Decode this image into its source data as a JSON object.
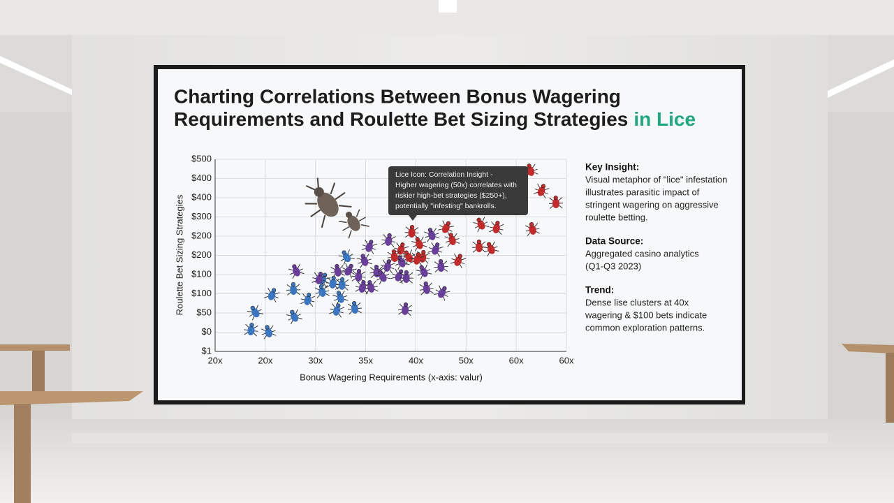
{
  "chart_data": {
    "type": "scatter",
    "title_lines": [
      "Charting Correlations Between Bonus Wagering",
      "Requirements and Roulette Bet Sizing Strategies"
    ],
    "title_highlight": "in Lice",
    "y_label": "Roulette Bet Sizing Strategies",
    "x_label": "Bonus Wagering Requirements (x-axis: valur)",
    "xlim": [
      0,
      7
    ],
    "xticks": [
      {
        "value": 0,
        "label": "20x"
      },
      {
        "value": 1,
        "label": "20x"
      },
      {
        "value": 2,
        "label": "30x"
      },
      {
        "value": 3,
        "label": "35x"
      },
      {
        "value": 4,
        "label": "40x"
      },
      {
        "value": 5,
        "label": "50x"
      },
      {
        "value": 6,
        "label": "60x"
      },
      {
        "value": 7,
        "label": "60x"
      }
    ],
    "ylim": [
      0,
      10
    ],
    "yticks": [
      {
        "value": 10,
        "label": "$500"
      },
      {
        "value": 9,
        "label": "$400"
      },
      {
        "value": 8,
        "label": "$400"
      },
      {
        "value": 7,
        "label": "$300"
      },
      {
        "value": 6,
        "label": "$200"
      },
      {
        "value": 5,
        "label": "$200"
      },
      {
        "value": 4,
        "label": "$100"
      },
      {
        "value": 3,
        "label": "$100"
      },
      {
        "value": 2,
        "label": "$50"
      },
      {
        "value": 1,
        "label": "$0"
      },
      {
        "value": 0,
        "label": "$1"
      }
    ],
    "grid": true,
    "series": [
      {
        "color": "#3a76c2",
        "x": [
          0.79,
          0.72,
          1.06,
          1.14,
          1.56,
          1.57,
          1.85,
          2.13,
          2.15,
          2.53,
          2.49,
          2.43,
          2.78,
          2.61,
          2.35
        ],
        "values": [
          2.07,
          1.16,
          1.05,
          2.98,
          3.27,
          1.85,
          2.73,
          3.16,
          3.78,
          3.53,
          2.84,
          2.18,
          2.29,
          4.95,
          3.6
        ]
      },
      {
        "color": "#6a3f9c",
        "x": [
          1.61,
          2.08,
          2.44,
          2.67,
          2.86,
          2.97,
          3.08,
          3.22,
          3.33,
          3.46,
          3.1,
          3.67,
          3.81,
          3.71,
          3.44,
          4.21,
          4.53,
          3.79,
          4.31,
          4.4,
          4.5,
          4.15,
          2.94
        ],
        "values": [
          4.22,
          3.82,
          4.22,
          4.25,
          3.96,
          4.76,
          5.49,
          4.18,
          3.93,
          5.82,
          3.38,
          3.96,
          3.89,
          4.69,
          4.47,
          3.31,
          3.09,
          2.22,
          6.11,
          5.35,
          4.47,
          4.18,
          3.38
        ]
      },
      {
        "color": "#c42a2a",
        "x": [
          6.28,
          6.51,
          6.79,
          5.29,
          5.61,
          6.32,
          4.61,
          3.92,
          4.06,
          3.71,
          3.57,
          3.85,
          4.14,
          4.72,
          4.85,
          5.26,
          5.49,
          4.03
        ],
        "values": [
          9.45,
          8.4,
          7.78,
          6.65,
          6.47,
          6.4,
          6.47,
          6.25,
          5.64,
          5.35,
          4.98,
          4.95,
          4.95,
          5.85,
          4.76,
          5.49,
          5.38,
          4.84
        ]
      }
    ],
    "annotation_lines": [
      "Lice Icon: Correlation Insight -",
      "Higher wagering (50x) correlates with",
      "riskier high-bet strategies ($250+),",
      "potentially \"infesting\" bankrolls."
    ],
    "insights": [
      {
        "heading": "Key Insight:",
        "lines": [
          "Visual metaphor of \"lice\" infestation",
          "illustrates parasitic impact of",
          "stringent wagering on aggressive",
          "roulette betting."
        ]
      },
      {
        "heading": "Data Source:",
        "lines": [
          "Aggregated casino analytics",
          "(Q1-Q3 2023)"
        ]
      },
      {
        "heading": "Trend:",
        "lines": [
          "Dense lise clusters at 40x",
          "wagering & $100 bets indicate",
          "common exploration patterns."
        ]
      }
    ]
  }
}
